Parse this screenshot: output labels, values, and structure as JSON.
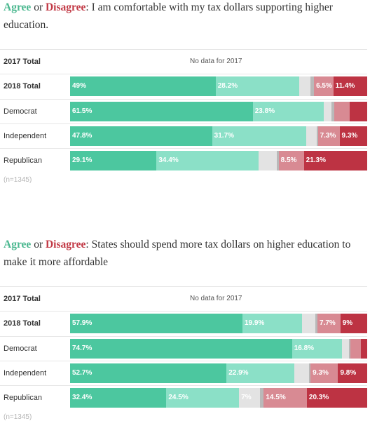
{
  "agree_word": "Agree",
  "or_word": "or",
  "disagree_word": "Disagree",
  "segment_colors": [
    "#4cc79f",
    "#8be0c7",
    "#e3e3e3",
    "#b9b9b9",
    "#d88a93",
    "#bd3343"
  ],
  "chart_data": [
    {
      "type": "bar",
      "orientation": "horizontal",
      "stacked": true,
      "title": "I am comfortable with my tax dollars supporting higher education.",
      "categories": [
        "2017 Total",
        "2018 Total",
        "Democrat",
        "Independent",
        "Republican"
      ],
      "nodata_text": "No data for 2017",
      "note": "(n=1345)",
      "rows": [
        {
          "label": "2017 Total",
          "nodata": true,
          "segments": []
        },
        {
          "label": "2018 Total",
          "segments": [
            {
              "value": 49,
              "label": "49%"
            },
            {
              "value": 28.2,
              "label": "28.2%"
            },
            {
              "value": 3.6,
              "label": ""
            },
            {
              "value": 1.3,
              "label": ""
            },
            {
              "value": 6.5,
              "label": "6.5%"
            },
            {
              "value": 11.4,
              "label": "11.4%"
            }
          ]
        },
        {
          "label": "Democrat",
          "segments": [
            {
              "value": 61.5,
              "label": "61.5%"
            },
            {
              "value": 23.8,
              "label": "23.8%"
            },
            {
              "value": 2.6,
              "label": ""
            },
            {
              "value": 1.0,
              "label": ""
            },
            {
              "value": 5.3,
              "label": ""
            },
            {
              "value": 5.8,
              "label": ""
            }
          ]
        },
        {
          "label": "Independent",
          "segments": [
            {
              "value": 47.8,
              "label": "47.8%"
            },
            {
              "value": 31.7,
              "label": "31.7%"
            },
            {
              "value": 3.5,
              "label": ""
            },
            {
              "value": 0.4,
              "label": ""
            },
            {
              "value": 7.3,
              "label": "7.3%"
            },
            {
              "value": 9.3,
              "label": "9.3%"
            }
          ]
        },
        {
          "label": "Republican",
          "segments": [
            {
              "value": 29.1,
              "label": "29.1%"
            },
            {
              "value": 34.4,
              "label": "34.4%"
            },
            {
              "value": 6.0,
              "label": ""
            },
            {
              "value": 0.7,
              "label": ""
            },
            {
              "value": 8.5,
              "label": "8.5%"
            },
            {
              "value": 21.3,
              "label": "21.3%"
            }
          ]
        }
      ]
    },
    {
      "type": "bar",
      "orientation": "horizontal",
      "stacked": true,
      "title": "States should spend more tax dollars on higher education to make it more affordable",
      "categories": [
        "2017 Total",
        "2018 Total",
        "Democrat",
        "Independent",
        "Republican"
      ],
      "nodata_text": "No data for 2017",
      "note": "(n=1345)",
      "rows": [
        {
          "label": "2017 Total",
          "nodata": true,
          "segments": []
        },
        {
          "label": "2018 Total",
          "segments": [
            {
              "value": 57.9,
              "label": "57.9%"
            },
            {
              "value": 19.9,
              "label": "19.9%"
            },
            {
              "value": 4.6,
              "label": ""
            },
            {
              "value": 0.7,
              "label": ""
            },
            {
              "value": 7.7,
              "label": "7.7%"
            },
            {
              "value": 9,
              "label": "9%"
            }
          ]
        },
        {
          "label": "Democrat",
          "segments": [
            {
              "value": 74.7,
              "label": "74.7%"
            },
            {
              "value": 16.8,
              "label": "16.8%"
            },
            {
              "value": 2.4,
              "label": ""
            },
            {
              "value": 0.5,
              "label": ""
            },
            {
              "value": 3.4,
              "label": ""
            },
            {
              "value": 2.2,
              "label": ""
            }
          ]
        },
        {
          "label": "Independent",
          "segments": [
            {
              "value": 52.7,
              "label": "52.7%"
            },
            {
              "value": 22.9,
              "label": "22.9%"
            },
            {
              "value": 4.9,
              "label": ""
            },
            {
              "value": 0.5,
              "label": ""
            },
            {
              "value": 9.3,
              "label": "9.3%"
            },
            {
              "value": 9.8,
              "label": "9.8%"
            }
          ]
        },
        {
          "label": "Republican",
          "segments": [
            {
              "value": 32.4,
              "label": "32.4%"
            },
            {
              "value": 24.5,
              "label": "24.5%"
            },
            {
              "value": 7,
              "label": "7%"
            },
            {
              "value": 1.3,
              "label": ""
            },
            {
              "value": 14.5,
              "label": "14.5%"
            },
            {
              "value": 20.3,
              "label": "20.3%"
            }
          ]
        }
      ]
    }
  ]
}
